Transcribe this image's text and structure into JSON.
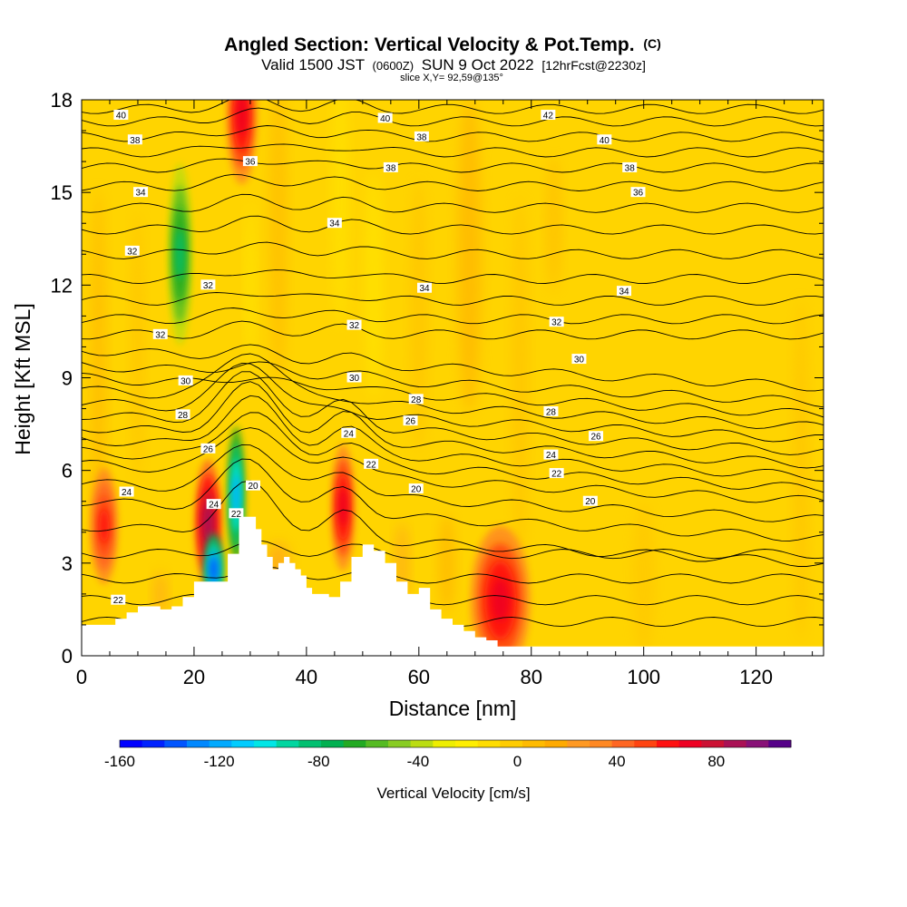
{
  "title": {
    "main": "Angled Section: Vertical Velocity & Pot.Temp.",
    "main_suffix": "(C)",
    "valid_prefix": "Valid 1500 JST",
    "valid_zulu": "(0600Z)",
    "valid_date": "SUN 9 Oct 2022",
    "forecast": "[12hrFcst@2230z]",
    "slice": "slice X,Y= 92,59@135°"
  },
  "chart_data": {
    "type": "heatmap",
    "xlabel": "Distance [nm]",
    "ylabel": "Height [Kft MSL]",
    "xlim": [
      0,
      132
    ],
    "ylim": [
      0,
      18
    ],
    "x_ticks": [
      0,
      20,
      40,
      60,
      80,
      100,
      120
    ],
    "y_ticks": [
      0,
      3,
      6,
      9,
      12,
      15,
      18
    ],
    "x_tick_labels": [
      "0",
      "20",
      "40",
      "60",
      "80",
      "100",
      "120"
    ],
    "y_tick_labels": [
      "0",
      "3",
      "6",
      "9",
      "12",
      "15",
      "18"
    ],
    "colorbar": {
      "title": "Vertical Velocity [cm/s]",
      "range": [
        -160,
        110
      ],
      "tick_values": [
        -160,
        -120,
        -80,
        -40,
        0,
        40,
        80
      ],
      "tick_labels": [
        "-160",
        "-120",
        "-80",
        "-40",
        "0",
        "40",
        "80"
      ],
      "colors": [
        "#0000ff",
        "#0022ff",
        "#0055ff",
        "#0088ff",
        "#00aaff",
        "#00ccff",
        "#00e6e6",
        "#00d6a0",
        "#00c070",
        "#00b050",
        "#22aa22",
        "#55bb22",
        "#88cc22",
        "#bbdd11",
        "#eeee00",
        "#ffee00",
        "#ffdd00",
        "#ffcc00",
        "#ffbb00",
        "#ffaa00",
        "#ff9922",
        "#ff8822",
        "#ff6622",
        "#ff4411",
        "#ff1111",
        "#ee0022",
        "#cc1133",
        "#aa1155",
        "#881177",
        "#550088"
      ]
    },
    "background_value_range_cm_s": [
      0,
      20
    ],
    "updraft_maxima": [
      {
        "x": 4,
        "z": 4.2,
        "value": 60
      },
      {
        "x": 22.5,
        "z": 4.3,
        "value": 90
      },
      {
        "x": 28.5,
        "z": 17.5,
        "value": 70
      },
      {
        "x": 46.5,
        "z": 4.8,
        "value": 70
      },
      {
        "x": 74.5,
        "z": 1.8,
        "value": 70
      }
    ],
    "downdraft_minima": [
      {
        "x": 17.5,
        "z": 13.0,
        "value": -80
      },
      {
        "x": 23.5,
        "z": 2.8,
        "value": -140
      },
      {
        "x": 27.5,
        "z": 5.2,
        "value": -120
      }
    ],
    "terrain_kft": {
      "x": [
        0,
        5,
        6,
        8,
        10,
        12,
        14,
        16,
        18,
        20,
        22,
        24,
        26,
        28,
        30,
        31,
        32,
        33,
        34,
        35,
        36,
        37,
        38,
        39,
        40,
        41,
        42,
        44,
        46,
        48,
        50,
        52,
        54,
        56,
        58,
        60,
        62,
        64,
        66,
        68,
        70,
        72,
        74,
        80,
        90,
        100,
        110,
        120,
        132
      ],
      "z": [
        1.0,
        1.0,
        1.2,
        1.4,
        1.6,
        1.6,
        1.5,
        1.6,
        1.9,
        2.4,
        2.4,
        2.4,
        3.3,
        4.5,
        4.5,
        4.1,
        3.6,
        3.2,
        2.8,
        3.0,
        3.2,
        3.0,
        2.8,
        2.6,
        2.2,
        2.0,
        2.0,
        1.9,
        2.4,
        3.2,
        3.6,
        3.4,
        3.0,
        2.4,
        2.0,
        2.2,
        1.5,
        1.2,
        1.0,
        0.8,
        0.6,
        0.5,
        0.3,
        0.3,
        0.3,
        0.3,
        0.3,
        0.3,
        0.3
      ]
    },
    "contour_labels": [
      {
        "text": "40",
        "x": 7,
        "z": 17.5
      },
      {
        "text": "40",
        "x": 54,
        "z": 17.4
      },
      {
        "text": "42",
        "x": 83,
        "z": 17.5
      },
      {
        "text": "38",
        "x": 9.5,
        "z": 16.7
      },
      {
        "text": "38",
        "x": 60.5,
        "z": 16.8
      },
      {
        "text": "40",
        "x": 93,
        "z": 16.7
      },
      {
        "text": "36",
        "x": 30,
        "z": 16.0
      },
      {
        "text": "38",
        "x": 55,
        "z": 15.8
      },
      {
        "text": "38",
        "x": 97.5,
        "z": 15.8
      },
      {
        "text": "34",
        "x": 10.5,
        "z": 15.0
      },
      {
        "text": "36",
        "x": 99,
        "z": 15.0
      },
      {
        "text": "34",
        "x": 45,
        "z": 14.0
      },
      {
        "text": "32",
        "x": 9,
        "z": 13.1
      },
      {
        "text": "32",
        "x": 22.5,
        "z": 12.0
      },
      {
        "text": "34",
        "x": 61,
        "z": 11.9
      },
      {
        "text": "34",
        "x": 96.5,
        "z": 11.8
      },
      {
        "text": "32",
        "x": 14,
        "z": 10.4
      },
      {
        "text": "32",
        "x": 48.5,
        "z": 10.7
      },
      {
        "text": "32",
        "x": 84.5,
        "z": 10.8
      },
      {
        "text": "30",
        "x": 18.5,
        "z": 8.9
      },
      {
        "text": "30",
        "x": 48.5,
        "z": 9.0
      },
      {
        "text": "30",
        "x": 88.5,
        "z": 9.6
      },
      {
        "text": "28",
        "x": 59.5,
        "z": 8.3
      },
      {
        "text": "28",
        "x": 18,
        "z": 7.8
      },
      {
        "text": "26",
        "x": 58.5,
        "z": 7.6
      },
      {
        "text": "28",
        "x": 83.5,
        "z": 7.9
      },
      {
        "text": "24",
        "x": 47.5,
        "z": 7.2
      },
      {
        "text": "26",
        "x": 91.5,
        "z": 7.1
      },
      {
        "text": "26",
        "x": 22.5,
        "z": 6.7
      },
      {
        "text": "24",
        "x": 83.5,
        "z": 6.5
      },
      {
        "text": "22",
        "x": 51.5,
        "z": 6.2
      },
      {
        "text": "22",
        "x": 84.5,
        "z": 5.9
      },
      {
        "text": "24",
        "x": 8,
        "z": 5.3
      },
      {
        "text": "20",
        "x": 59.5,
        "z": 5.4
      },
      {
        "text": "20",
        "x": 30.5,
        "z": 5.5
      },
      {
        "text": "20",
        "x": 90.5,
        "z": 5.0
      },
      {
        "text": "24",
        "x": 23.5,
        "z": 4.9
      },
      {
        "text": "22",
        "x": 27.5,
        "z": 4.6
      },
      {
        "text": "22",
        "x": 6.5,
        "z": 1.8
      }
    ]
  }
}
